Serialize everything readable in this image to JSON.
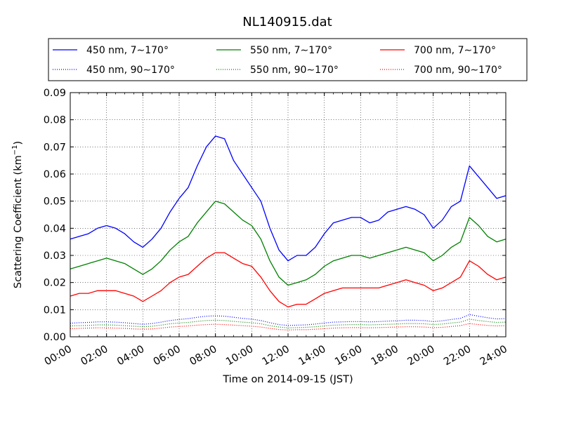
{
  "chart_data": {
    "type": "line",
    "title": "NL140915.dat",
    "xlabel": "Time on 2014-09-15 (JST)",
    "ylabel": "Scattering Coefficient (km",
    "ylabel_sup": "−1",
    "ylabel_close": ")",
    "xlim": [
      "00:00",
      "24:00"
    ],
    "ylim": [
      0.0,
      0.09
    ],
    "grid": true,
    "legend_position": "top, above plot, 3 columns",
    "x_ticks": [
      "00:00",
      "02:00",
      "04:00",
      "06:00",
      "08:00",
      "10:00",
      "12:00",
      "14:00",
      "16:00",
      "18:00",
      "20:00",
      "22:00",
      "24:00"
    ],
    "y_ticks": [
      "0.00",
      "0.01",
      "0.02",
      "0.03",
      "0.04",
      "0.05",
      "0.06",
      "0.07",
      "0.08",
      "0.09"
    ],
    "x_hours": [
      0,
      0.5,
      1,
      1.5,
      2,
      2.5,
      3,
      3.5,
      4,
      4.5,
      5,
      5.5,
      6,
      6.5,
      7,
      7.5,
      8,
      8.5,
      9,
      9.5,
      10,
      10.5,
      11,
      11.5,
      12,
      12.5,
      13,
      13.5,
      14,
      14.5,
      15,
      15.5,
      16,
      16.5,
      17,
      17.5,
      18,
      18.5,
      19,
      19.5,
      20,
      20.5,
      21,
      21.5,
      22,
      22.5,
      23,
      23.5,
      24
    ],
    "series": [
      {
        "name": "450 nm, 7∼170°",
        "color": "#0000ff",
        "style": "solid",
        "values": [
          0.036,
          0.037,
          0.038,
          0.04,
          0.041,
          0.04,
          0.038,
          0.035,
          0.033,
          0.036,
          0.04,
          0.046,
          0.051,
          0.055,
          0.063,
          0.07,
          0.074,
          0.073,
          0.065,
          0.06,
          0.055,
          0.05,
          0.04,
          0.032,
          0.028,
          0.03,
          0.03,
          0.033,
          0.038,
          0.042,
          0.043,
          0.044,
          0.044,
          0.042,
          0.043,
          0.046,
          0.047,
          0.048,
          0.047,
          0.045,
          0.04,
          0.043,
          0.048,
          0.05,
          0.063,
          0.059,
          0.055,
          0.051,
          0.052
        ]
      },
      {
        "name": "550 nm, 7∼170°",
        "color": "#008000",
        "style": "solid",
        "values": [
          0.025,
          0.026,
          0.027,
          0.028,
          0.029,
          0.028,
          0.027,
          0.025,
          0.023,
          0.025,
          0.028,
          0.032,
          0.035,
          0.037,
          0.042,
          0.046,
          0.05,
          0.049,
          0.046,
          0.043,
          0.041,
          0.036,
          0.028,
          0.022,
          0.019,
          0.02,
          0.021,
          0.023,
          0.026,
          0.028,
          0.029,
          0.03,
          0.03,
          0.029,
          0.03,
          0.031,
          0.032,
          0.033,
          0.032,
          0.031,
          0.028,
          0.03,
          0.033,
          0.035,
          0.044,
          0.041,
          0.037,
          0.035,
          0.036
        ]
      },
      {
        "name": "700 nm, 7∼170°",
        "color": "#ff0000",
        "style": "solid",
        "values": [
          0.015,
          0.016,
          0.016,
          0.017,
          0.017,
          0.017,
          0.016,
          0.015,
          0.013,
          0.015,
          0.017,
          0.02,
          0.022,
          0.023,
          0.026,
          0.029,
          0.031,
          0.031,
          0.029,
          0.027,
          0.026,
          0.022,
          0.017,
          0.013,
          0.011,
          0.012,
          0.012,
          0.014,
          0.016,
          0.017,
          0.018,
          0.018,
          0.018,
          0.018,
          0.018,
          0.019,
          0.02,
          0.021,
          0.02,
          0.019,
          0.017,
          0.018,
          0.02,
          0.022,
          0.028,
          0.026,
          0.023,
          0.021,
          0.022
        ]
      },
      {
        "name": "450 nm, 90∼170°",
        "color": "#0000ff",
        "style": "dotted",
        "values": [
          0.005,
          0.0052,
          0.0053,
          0.0055,
          0.0055,
          0.0054,
          0.0052,
          0.0049,
          0.0046,
          0.0049,
          0.0054,
          0.006,
          0.0064,
          0.0067,
          0.0072,
          0.0076,
          0.0077,
          0.0076,
          0.0072,
          0.0068,
          0.0065,
          0.006,
          0.0052,
          0.0045,
          0.0042,
          0.0043,
          0.0044,
          0.0047,
          0.0051,
          0.0054,
          0.0055,
          0.0056,
          0.0056,
          0.0055,
          0.0056,
          0.0058,
          0.0059,
          0.0061,
          0.0061,
          0.006,
          0.0056,
          0.0059,
          0.0064,
          0.0068,
          0.0082,
          0.0076,
          0.007,
          0.0066,
          0.0067
        ]
      },
      {
        "name": "550 nm, 90∼170°",
        "color": "#008000",
        "style": "dotted",
        "values": [
          0.004,
          0.0041,
          0.0042,
          0.0044,
          0.0044,
          0.0043,
          0.0041,
          0.0039,
          0.0037,
          0.0039,
          0.0043,
          0.0048,
          0.0051,
          0.0053,
          0.0057,
          0.006,
          0.0061,
          0.006,
          0.0057,
          0.0054,
          0.0052,
          0.0048,
          0.0041,
          0.0036,
          0.0033,
          0.0034,
          0.0035,
          0.0037,
          0.004,
          0.0043,
          0.0044,
          0.0045,
          0.0045,
          0.0044,
          0.0045,
          0.0046,
          0.0047,
          0.0049,
          0.0049,
          0.0048,
          0.0045,
          0.0047,
          0.0051,
          0.0054,
          0.0065,
          0.006,
          0.0056,
          0.0053,
          0.0054
        ]
      },
      {
        "name": "700 nm, 90∼170°",
        "color": "#ff0000",
        "style": "dotted",
        "values": [
          0.003,
          0.0031,
          0.0032,
          0.0033,
          0.0033,
          0.0032,
          0.0031,
          0.0029,
          0.0028,
          0.0029,
          0.0032,
          0.0036,
          0.0038,
          0.004,
          0.0043,
          0.0045,
          0.0046,
          0.0045,
          0.0043,
          0.0041,
          0.0039,
          0.0036,
          0.0031,
          0.0027,
          0.0025,
          0.0026,
          0.0026,
          0.0028,
          0.003,
          0.0032,
          0.0033,
          0.0034,
          0.0034,
          0.0033,
          0.0034,
          0.0035,
          0.0036,
          0.0037,
          0.0037,
          0.0036,
          0.0034,
          0.0035,
          0.0038,
          0.0041,
          0.0049,
          0.0045,
          0.0042,
          0.004,
          0.0041
        ]
      }
    ],
    "legend_order": [
      0,
      1,
      2,
      3,
      4,
      5
    ]
  }
}
